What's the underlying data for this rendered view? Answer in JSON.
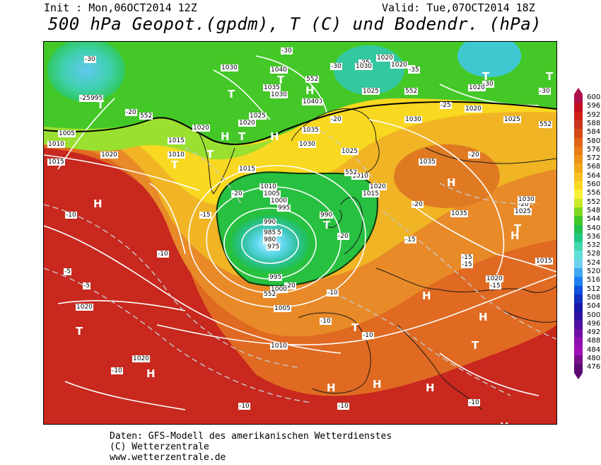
{
  "header": {
    "init": "Init : Mon,06OCT2014 12Z",
    "valid": "Valid: Tue,07OCT2014 18Z",
    "title": "500 hPa Geopot.(gpdm), T (C) und Bodendr. (hPa)"
  },
  "footer": {
    "line1": "Daten: GFS-Modell des amerikanischen Wetterdienstes",
    "line2": "(C) Wetterzentrale",
    "line3": "www.wetterzentrale.de"
  },
  "legend": {
    "labels": [
      "600",
      "596",
      "592",
      "588",
      "584",
      "580",
      "576",
      "572",
      "568",
      "564",
      "560",
      "556",
      "552",
      "548",
      "544",
      "540",
      "536",
      "532",
      "528",
      "524",
      "520",
      "516",
      "512",
      "508",
      "504",
      "500",
      "496",
      "492",
      "488",
      "484",
      "480",
      "476"
    ],
    "colors": [
      "#b0104e",
      "#c01020",
      "#d02018",
      "#c8341c",
      "#d84a18",
      "#e06418",
      "#e87c18",
      "#f09018",
      "#f0a818",
      "#f8c020",
      "#f8d820",
      "#f8f038",
      "#c8e828",
      "#80d820",
      "#40c828",
      "#20c050",
      "#20c880",
      "#40d8b0",
      "#60e0d8",
      "#70d0f0",
      "#3ca8f0",
      "#2080f0",
      "#1050e0",
      "#1030c0",
      "#1818a8",
      "#3010a0",
      "#5010a0",
      "#7010a8",
      "#9010b0",
      "#a010b8",
      "#7a0f8c",
      "#5a0a70"
    ]
  },
  "map_labels": {
    "T": "T",
    "H": "H",
    "temps": [
      "-35",
      "-30",
      "-25",
      "-20",
      "-15",
      "-10",
      "-5"
    ],
    "pressure": [
      "975",
      "980",
      "985",
      "990",
      "995",
      "1000",
      "1005",
      "1010",
      "1015",
      "1020",
      "1025",
      "1030",
      "1035",
      "1040"
    ],
    "geopot": "552"
  },
  "colors": {
    "warm_red": "#c8281e",
    "orange": "#e8782a",
    "yellow": "#f8d820",
    "green": "#40c828",
    "cyan": "#60d8f0",
    "contour": "#ffffff",
    "coast": "#1a1a1a"
  }
}
